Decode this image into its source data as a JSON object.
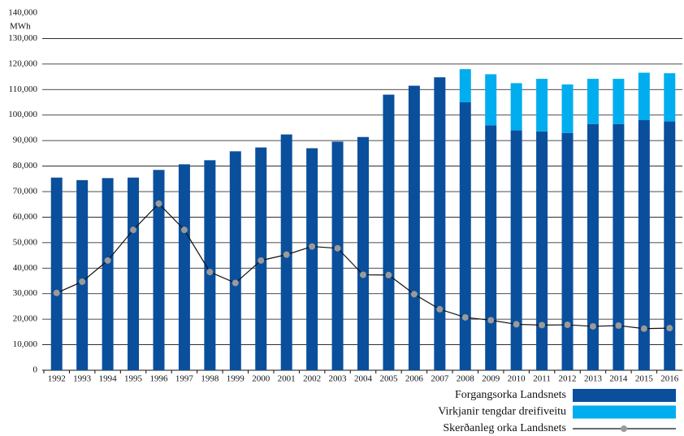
{
  "chart_data": {
    "type": "stacked-bar-line",
    "y_unit": "MWh",
    "categories": [
      "1992",
      "1993",
      "1994",
      "1995",
      "1996",
      "1997",
      "1998",
      "1999",
      "2000",
      "2001",
      "2002",
      "2003",
      "2004",
      "2005",
      "2006",
      "2007",
      "2008",
      "2009",
      "2010",
      "2011",
      "2012",
      "2013",
      "2014",
      "2015",
      "2016"
    ],
    "series": [
      {
        "name": "Forgangsorka Landsnets",
        "kind": "bar",
        "color": "#0a4f9c",
        "values": [
          75500,
          74500,
          75300,
          75500,
          78500,
          80700,
          82300,
          85800,
          87300,
          92400,
          87000,
          89600,
          91400,
          108000,
          111500,
          114800,
          105000,
          96000,
          94000,
          93600,
          93000,
          96500,
          96500,
          98000,
          97500
        ]
      },
      {
        "name": "Virkjanir tengdar dreifiveitu",
        "kind": "bar",
        "color": "#00aeef",
        "values": [
          null,
          null,
          null,
          null,
          null,
          null,
          null,
          null,
          null,
          null,
          null,
          null,
          null,
          null,
          null,
          null,
          13000,
          20000,
          18500,
          20600,
          19000,
          17700,
          17700,
          18600,
          18900
        ]
      },
      {
        "name": "Skerðanleg orka Landsnets",
        "kind": "line",
        "color": "#111111",
        "marker_color": "#9a9a9a",
        "values": [
          30300,
          34700,
          43000,
          55000,
          65300,
          55000,
          38500,
          34200,
          43000,
          45300,
          48500,
          47800,
          37400,
          37300,
          29800,
          23900,
          20700,
          19600,
          18000,
          17700,
          17800,
          17200,
          17500,
          16300,
          16500
        ]
      }
    ],
    "ylim": [
      0,
      140000
    ],
    "yticks": [
      0,
      {
        "value": 10000,
        "label": "10,000"
      },
      {
        "value": 20000,
        "label": "20,000"
      },
      {
        "value": 30000,
        "label": "30,000"
      },
      {
        "value": 40000,
        "label": "40,000"
      },
      {
        "value": 50000,
        "label": "50,000"
      },
      {
        "value": 60000,
        "label": "60,000"
      },
      {
        "value": 70000,
        "label": "70,000"
      },
      {
        "value": 80000,
        "label": "80,000"
      },
      {
        "value": 90000,
        "label": "90,000"
      },
      {
        "value": 100000,
        "label": "100,000"
      },
      {
        "value": 110000,
        "label": "110,000"
      },
      {
        "value": 120000,
        "label": "120,000"
      },
      {
        "value": 130000,
        "label": "130,000"
      },
      {
        "value": 140000,
        "label": "140,000"
      }
    ],
    "grid": true,
    "legend": "bottom-right"
  }
}
